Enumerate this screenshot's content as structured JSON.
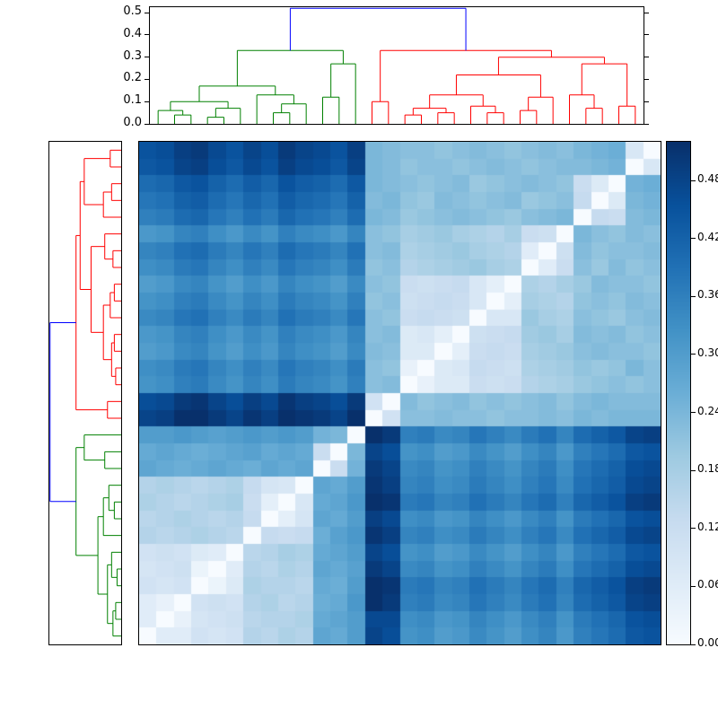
{
  "figure": {
    "background": "#ffffff",
    "frame_color": "#000000"
  },
  "chart_data": {
    "type": "heatmap",
    "subtype": "clustered-distance-matrix-with-dendrograms",
    "n": 30,
    "colormap": "Blues",
    "vmin": 0.0,
    "vmax": 0.52,
    "row_order": "reverse-of-column-order",
    "matrix": [
      [
        0.45,
        0.46,
        0.49,
        0.5,
        0.47,
        0.45,
        0.48,
        0.46,
        0.5,
        0.48,
        0.47,
        0.45,
        0.49,
        0.24,
        0.23,
        0.22,
        0.22,
        0.21,
        0.22,
        0.23,
        0.22,
        0.21,
        0.22,
        0.23,
        0.22,
        0.24,
        0.25,
        0.26,
        0.08,
        0.0
      ],
      [
        0.44,
        0.45,
        0.48,
        0.49,
        0.46,
        0.44,
        0.47,
        0.45,
        0.49,
        0.47,
        0.46,
        0.44,
        0.48,
        0.24,
        0.23,
        0.21,
        0.22,
        0.22,
        0.21,
        0.22,
        0.23,
        0.22,
        0.21,
        0.22,
        0.23,
        0.23,
        0.24,
        0.25,
        0.0,
        0.08
      ],
      [
        0.4,
        0.41,
        0.44,
        0.45,
        0.42,
        0.4,
        0.43,
        0.41,
        0.45,
        0.43,
        0.42,
        0.4,
        0.44,
        0.24,
        0.23,
        0.22,
        0.21,
        0.22,
        0.23,
        0.2,
        0.21,
        0.22,
        0.23,
        0.22,
        0.21,
        0.12,
        0.07,
        0.0,
        0.25,
        0.26
      ],
      [
        0.38,
        0.39,
        0.42,
        0.43,
        0.4,
        0.38,
        0.41,
        0.39,
        0.43,
        0.41,
        0.4,
        0.38,
        0.42,
        0.23,
        0.24,
        0.21,
        0.2,
        0.23,
        0.22,
        0.21,
        0.22,
        0.23,
        0.2,
        0.21,
        0.22,
        0.13,
        0.0,
        0.07,
        0.24,
        0.25
      ],
      [
        0.36,
        0.37,
        0.4,
        0.41,
        0.38,
        0.36,
        0.39,
        0.37,
        0.41,
        0.39,
        0.38,
        0.36,
        0.4,
        0.24,
        0.23,
        0.2,
        0.21,
        0.22,
        0.23,
        0.22,
        0.21,
        0.2,
        0.22,
        0.23,
        0.24,
        0.0,
        0.13,
        0.12,
        0.23,
        0.24
      ],
      [
        0.31,
        0.32,
        0.35,
        0.36,
        0.33,
        0.31,
        0.34,
        0.32,
        0.36,
        0.34,
        0.33,
        0.31,
        0.35,
        0.22,
        0.21,
        0.18,
        0.19,
        0.2,
        0.18,
        0.17,
        0.16,
        0.18,
        0.12,
        0.11,
        0.0,
        0.24,
        0.22,
        0.21,
        0.23,
        0.22
      ],
      [
        0.35,
        0.36,
        0.39,
        0.4,
        0.37,
        0.35,
        0.38,
        0.36,
        0.4,
        0.38,
        0.37,
        0.35,
        0.39,
        0.22,
        0.23,
        0.17,
        0.18,
        0.19,
        0.2,
        0.18,
        0.17,
        0.16,
        0.06,
        0.0,
        0.11,
        0.23,
        0.21,
        0.22,
        0.22,
        0.23
      ],
      [
        0.33,
        0.34,
        0.37,
        0.38,
        0.35,
        0.33,
        0.36,
        0.34,
        0.38,
        0.36,
        0.35,
        0.33,
        0.37,
        0.21,
        0.22,
        0.16,
        0.17,
        0.18,
        0.19,
        0.2,
        0.18,
        0.17,
        0.0,
        0.06,
        0.12,
        0.22,
        0.2,
        0.23,
        0.21,
        0.22
      ],
      [
        0.3,
        0.31,
        0.34,
        0.35,
        0.32,
        0.3,
        0.33,
        0.31,
        0.35,
        0.33,
        0.32,
        0.3,
        0.34,
        0.22,
        0.21,
        0.12,
        0.11,
        0.12,
        0.13,
        0.08,
        0.05,
        0.0,
        0.17,
        0.16,
        0.18,
        0.2,
        0.23,
        0.22,
        0.22,
        0.21
      ],
      [
        0.32,
        0.33,
        0.36,
        0.37,
        0.34,
        0.32,
        0.35,
        0.33,
        0.37,
        0.35,
        0.34,
        0.32,
        0.36,
        0.21,
        0.22,
        0.11,
        0.12,
        0.13,
        0.12,
        0.08,
        0.0,
        0.05,
        0.18,
        0.17,
        0.16,
        0.21,
        0.22,
        0.21,
        0.23,
        0.22
      ],
      [
        0.34,
        0.35,
        0.38,
        0.39,
        0.36,
        0.34,
        0.37,
        0.35,
        0.39,
        0.37,
        0.36,
        0.34,
        0.38,
        0.22,
        0.21,
        0.12,
        0.13,
        0.12,
        0.11,
        0.0,
        0.08,
        0.08,
        0.2,
        0.18,
        0.17,
        0.22,
        0.21,
        0.2,
        0.22,
        0.23
      ],
      [
        0.31,
        0.32,
        0.35,
        0.36,
        0.33,
        0.31,
        0.34,
        0.32,
        0.36,
        0.34,
        0.33,
        0.31,
        0.35,
        0.22,
        0.23,
        0.07,
        0.08,
        0.05,
        0.0,
        0.11,
        0.12,
        0.13,
        0.19,
        0.2,
        0.18,
        0.23,
        0.22,
        0.23,
        0.21,
        0.22
      ],
      [
        0.3,
        0.31,
        0.34,
        0.35,
        0.32,
        0.3,
        0.33,
        0.31,
        0.35,
        0.33,
        0.32,
        0.3,
        0.34,
        0.23,
        0.22,
        0.07,
        0.07,
        0.0,
        0.05,
        0.12,
        0.13,
        0.12,
        0.18,
        0.19,
        0.2,
        0.22,
        0.23,
        0.22,
        0.22,
        0.21
      ],
      [
        0.33,
        0.34,
        0.37,
        0.38,
        0.35,
        0.33,
        0.36,
        0.34,
        0.38,
        0.36,
        0.35,
        0.33,
        0.37,
        0.22,
        0.21,
        0.04,
        0.0,
        0.07,
        0.08,
        0.13,
        0.12,
        0.11,
        0.17,
        0.18,
        0.19,
        0.21,
        0.2,
        0.21,
        0.24,
        0.22
      ],
      [
        0.32,
        0.33,
        0.36,
        0.37,
        0.34,
        0.32,
        0.35,
        0.33,
        0.37,
        0.35,
        0.34,
        0.32,
        0.36,
        0.22,
        0.23,
        0.0,
        0.04,
        0.07,
        0.07,
        0.12,
        0.11,
        0.12,
        0.16,
        0.17,
        0.18,
        0.2,
        0.21,
        0.22,
        0.21,
        0.22
      ],
      [
        0.46,
        0.47,
        0.5,
        0.51,
        0.48,
        0.46,
        0.49,
        0.47,
        0.51,
        0.49,
        0.48,
        0.46,
        0.5,
        0.1,
        0.0,
        0.23,
        0.21,
        0.22,
        0.23,
        0.21,
        0.22,
        0.21,
        0.22,
        0.23,
        0.21,
        0.23,
        0.24,
        0.23,
        0.23,
        0.23
      ],
      [
        0.48,
        0.49,
        0.52,
        0.52,
        0.5,
        0.48,
        0.51,
        0.49,
        0.52,
        0.51,
        0.5,
        0.48,
        0.52,
        0.0,
        0.1,
        0.22,
        0.22,
        0.23,
        0.22,
        0.22,
        0.21,
        0.22,
        0.22,
        0.23,
        0.22,
        0.24,
        0.23,
        0.24,
        0.24,
        0.24
      ],
      [
        0.3,
        0.3,
        0.31,
        0.3,
        0.29,
        0.3,
        0.31,
        0.3,
        0.31,
        0.3,
        0.25,
        0.24,
        0.0,
        0.52,
        0.5,
        0.36,
        0.37,
        0.34,
        0.35,
        0.38,
        0.36,
        0.34,
        0.37,
        0.39,
        0.35,
        0.4,
        0.42,
        0.44,
        0.48,
        0.49
      ],
      [
        0.27,
        0.28,
        0.27,
        0.26,
        0.27,
        0.28,
        0.29,
        0.27,
        0.28,
        0.27,
        0.12,
        0.0,
        0.24,
        0.48,
        0.46,
        0.32,
        0.33,
        0.3,
        0.31,
        0.34,
        0.32,
        0.3,
        0.33,
        0.35,
        0.31,
        0.36,
        0.38,
        0.4,
        0.44,
        0.45
      ],
      [
        0.28,
        0.27,
        0.26,
        0.27,
        0.28,
        0.27,
        0.26,
        0.28,
        0.27,
        0.28,
        0.0,
        0.12,
        0.25,
        0.5,
        0.48,
        0.34,
        0.35,
        0.32,
        0.33,
        0.36,
        0.34,
        0.32,
        0.35,
        0.37,
        0.33,
        0.38,
        0.4,
        0.42,
        0.46,
        0.47
      ],
      [
        0.16,
        0.17,
        0.16,
        0.15,
        0.16,
        0.17,
        0.13,
        0.09,
        0.08,
        0.0,
        0.28,
        0.27,
        0.3,
        0.51,
        0.49,
        0.35,
        0.36,
        0.33,
        0.34,
        0.37,
        0.35,
        0.33,
        0.36,
        0.38,
        0.34,
        0.39,
        0.41,
        0.43,
        0.47,
        0.48
      ],
      [
        0.17,
        0.16,
        0.15,
        0.16,
        0.17,
        0.18,
        0.12,
        0.05,
        0.0,
        0.08,
        0.27,
        0.28,
        0.31,
        0.52,
        0.51,
        0.37,
        0.38,
        0.35,
        0.36,
        0.39,
        0.37,
        0.35,
        0.38,
        0.4,
        0.36,
        0.41,
        0.43,
        0.45,
        0.49,
        0.5
      ],
      [
        0.15,
        0.16,
        0.17,
        0.16,
        0.15,
        0.16,
        0.13,
        0.0,
        0.05,
        0.09,
        0.28,
        0.27,
        0.3,
        0.49,
        0.47,
        0.33,
        0.34,
        0.31,
        0.32,
        0.35,
        0.33,
        0.31,
        0.34,
        0.36,
        0.32,
        0.37,
        0.39,
        0.41,
        0.45,
        0.46
      ],
      [
        0.16,
        0.15,
        0.16,
        0.17,
        0.16,
        0.15,
        0.0,
        0.13,
        0.12,
        0.13,
        0.26,
        0.29,
        0.31,
        0.51,
        0.49,
        0.35,
        0.36,
        0.33,
        0.34,
        0.37,
        0.35,
        0.33,
        0.36,
        0.38,
        0.34,
        0.39,
        0.41,
        0.43,
        0.47,
        0.48
      ],
      [
        0.1,
        0.11,
        0.1,
        0.07,
        0.06,
        0.0,
        0.15,
        0.16,
        0.18,
        0.17,
        0.27,
        0.28,
        0.3,
        0.48,
        0.46,
        0.32,
        0.33,
        0.3,
        0.31,
        0.34,
        0.32,
        0.3,
        0.33,
        0.35,
        0.31,
        0.36,
        0.38,
        0.4,
        0.44,
        0.45
      ],
      [
        0.09,
        0.1,
        0.11,
        0.03,
        0.0,
        0.06,
        0.16,
        0.15,
        0.17,
        0.16,
        0.28,
        0.27,
        0.29,
        0.5,
        0.48,
        0.34,
        0.35,
        0.32,
        0.33,
        0.36,
        0.34,
        0.32,
        0.35,
        0.37,
        0.33,
        0.38,
        0.4,
        0.42,
        0.46,
        0.47
      ],
      [
        0.1,
        0.09,
        0.1,
        0.0,
        0.03,
        0.07,
        0.17,
        0.16,
        0.16,
        0.15,
        0.27,
        0.26,
        0.3,
        0.52,
        0.51,
        0.37,
        0.38,
        0.35,
        0.36,
        0.39,
        0.37,
        0.35,
        0.38,
        0.4,
        0.36,
        0.41,
        0.43,
        0.45,
        0.49,
        0.5
      ],
      [
        0.06,
        0.04,
        0.0,
        0.1,
        0.11,
        0.1,
        0.16,
        0.17,
        0.15,
        0.16,
        0.26,
        0.27,
        0.31,
        0.52,
        0.5,
        0.36,
        0.37,
        0.34,
        0.35,
        0.38,
        0.36,
        0.34,
        0.37,
        0.39,
        0.35,
        0.4,
        0.42,
        0.44,
        0.48,
        0.49
      ],
      [
        0.06,
        0.0,
        0.04,
        0.09,
        0.1,
        0.11,
        0.15,
        0.16,
        0.16,
        0.17,
        0.27,
        0.28,
        0.3,
        0.47,
        0.47,
        0.33,
        0.34,
        0.31,
        0.32,
        0.35,
        0.33,
        0.31,
        0.34,
        0.36,
        0.32,
        0.37,
        0.39,
        0.41,
        0.45,
        0.46
      ],
      [
        0.0,
        0.06,
        0.06,
        0.1,
        0.09,
        0.1,
        0.16,
        0.15,
        0.17,
        0.16,
        0.28,
        0.27,
        0.3,
        0.48,
        0.46,
        0.32,
        0.33,
        0.3,
        0.31,
        0.34,
        0.32,
        0.3,
        0.33,
        0.35,
        0.31,
        0.36,
        0.38,
        0.4,
        0.44,
        0.45
      ]
    ],
    "top_dendrogram": {
      "axis_tick_labels": [
        "0.0",
        "0.1",
        "0.2",
        "0.3",
        "0.4",
        "0.5"
      ],
      "axis_max": 0.525,
      "link_colors": {
        "blue": "#0000ff",
        "green": "#008000",
        "red": "#ff0000"
      },
      "tree": {
        "h": 0.52,
        "col": "blue",
        "c": [
          {
            "h": 0.33,
            "col": "green",
            "c": [
              {
                "h": 0.17,
                "c": [
                  {
                    "h": 0.1,
                    "c": [
                      {
                        "h": 0.06,
                        "c": [
                          0,
                          {
                            "h": 0.04,
                            "c": [
                              0,
                              0
                            ]
                          }
                        ]
                      },
                      {
                        "h": 0.07,
                        "c": [
                          {
                            "h": 0.03,
                            "c": [
                              0,
                              0
                            ]
                          },
                          0
                        ]
                      }
                    ]
                  },
                  {
                    "h": 0.13,
                    "c": [
                      0,
                      {
                        "h": 0.09,
                        "c": [
                          {
                            "h": 0.05,
                            "c": [
                              0,
                              0
                            ]
                          },
                          0
                        ]
                      }
                    ]
                  }
                ]
              },
              {
                "h": 0.27,
                "c": [
                  {
                    "h": 0.12,
                    "c": [
                      0,
                      0
                    ]
                  },
                  0
                ]
              }
            ]
          },
          {
            "h": 0.33,
            "col": "red",
            "c": [
              {
                "h": 0.1,
                "c": [
                  0,
                  0
                ]
              },
              {
                "h": 0.3,
                "c": [
                  {
                    "h": 0.22,
                    "c": [
                      {
                        "h": 0.13,
                        "c": [
                          {
                            "h": 0.07,
                            "c": [
                              {
                                "h": 0.04,
                                "c": [
                                  0,
                                  0
                                ]
                              },
                              {
                                "h": 0.05,
                                "c": [
                                  0,
                                  0
                                ]
                              }
                            ]
                          },
                          {
                            "h": 0.08,
                            "c": [
                              0,
                              {
                                "h": 0.05,
                                "c": [
                                  0,
                                  0
                                ]
                              }
                            ]
                          }
                        ]
                      },
                      {
                        "h": 0.12,
                        "c": [
                          {
                            "h": 0.06,
                            "c": [
                              0,
                              0
                            ]
                          },
                          0
                        ]
                      }
                    ]
                  },
                  {
                    "h": 0.27,
                    "c": [
                      {
                        "h": 0.13,
                        "c": [
                          0,
                          {
                            "h": 0.07,
                            "c": [
                              0,
                              0
                            ]
                          }
                        ]
                      },
                      {
                        "h": 0.08,
                        "c": [
                          0,
                          0
                        ]
                      }
                    ]
                  }
                ]
              }
            ]
          }
        ]
      }
    },
    "left_dendrogram": {
      "orientation": "left",
      "leaf_order": "reversed-top-to-bottom",
      "tree": "same-as-top"
    },
    "colorbar": {
      "location": "right",
      "tick_labels": [
        "0.00",
        "0.06",
        "0.12",
        "0.18",
        "0.24",
        "0.30",
        "0.36",
        "0.42",
        "0.48"
      ]
    }
  }
}
